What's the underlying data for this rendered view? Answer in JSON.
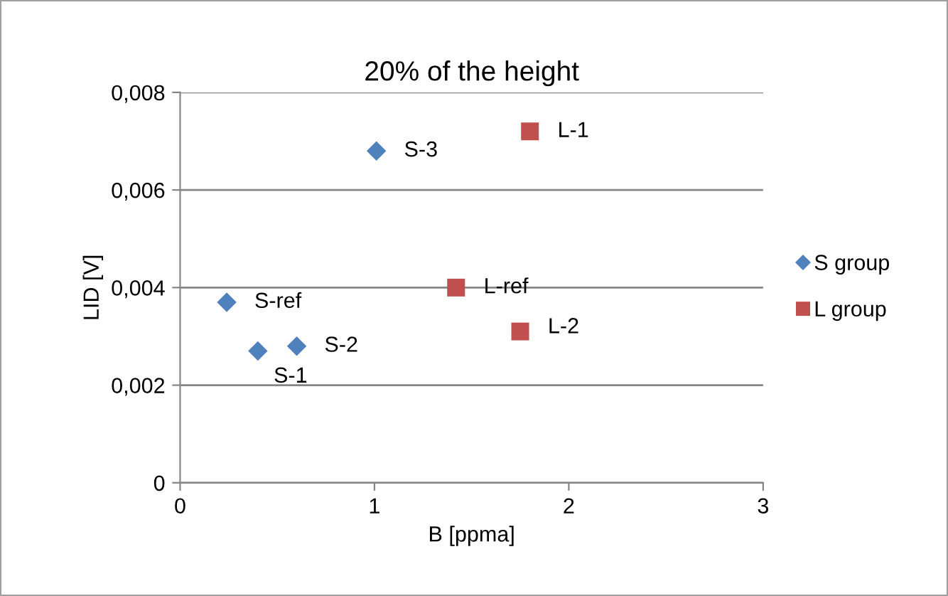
{
  "chart_data": {
    "type": "scatter",
    "title": "20% of the height",
    "xlabel": "B [ppma]",
    "ylabel": "LID [V]",
    "series": [
      {
        "name": "S group",
        "color": "#4f81bd",
        "marker": "diamond",
        "x": [
          0.24,
          0.4,
          0.6,
          1.01
        ],
        "values": [
          0.0037,
          0.0027,
          0.0028,
          0.0068
        ]
      },
      {
        "name": "L group",
        "color": "#c0504d",
        "marker": "square",
        "x": [
          1.8,
          1.42,
          1.75
        ],
        "values": [
          0.0072,
          0.004,
          0.0031
        ]
      }
    ],
    "annotations": [
      {
        "text": "S-ref",
        "x": 0.24,
        "y": 0.0037
      },
      {
        "text": "S-1",
        "x": 0.4,
        "y": 0.0027
      },
      {
        "text": "S-2",
        "x": 0.6,
        "y": 0.0028
      },
      {
        "text": "S-3",
        "x": 1.01,
        "y": 0.0068
      },
      {
        "text": "L-1",
        "x": 1.8,
        "y": 0.0072
      },
      {
        "text": "L-ref",
        "x": 1.42,
        "y": 0.004
      },
      {
        "text": "L-2",
        "x": 1.75,
        "y": 0.0031
      }
    ],
    "xlim": [
      0,
      3
    ],
    "xticks": [
      0,
      1,
      2,
      3
    ],
    "ylim": [
      0,
      0.008
    ],
    "yticks": [
      0,
      {
        "value": 0.002,
        "label": "0,002"
      },
      {
        "value": 0.004,
        "label": "0,004"
      },
      {
        "value": 0.006,
        "label": "0,006"
      },
      {
        "value": 0.008,
        "label": "0,008"
      }
    ],
    "grid": "y",
    "legend": "right"
  }
}
